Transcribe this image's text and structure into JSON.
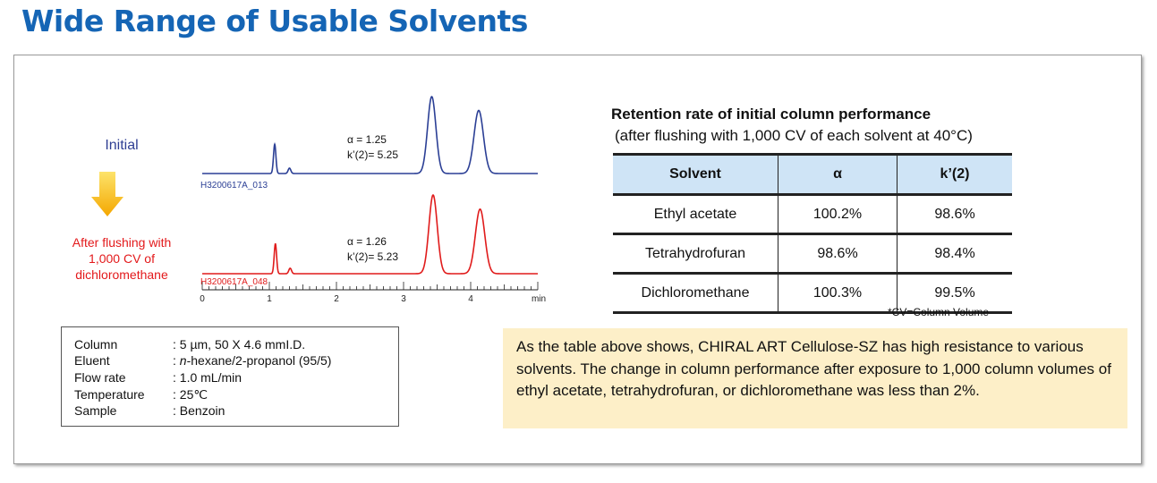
{
  "page": {
    "title": "Wide Range of Usable Solvents"
  },
  "labels": {
    "initial": "Initial",
    "after_line1": "After flushing with",
    "after_line2": "1,000 CV of",
    "after_line3": "dichloromethane"
  },
  "chart_data": {
    "type": "line",
    "title": "",
    "xlabel": "min",
    "x_ticks": [
      "0",
      "1",
      "2",
      "3",
      "4"
    ],
    "xlim": [
      0,
      5
    ],
    "x_minor_step": 0.1,
    "grid": false,
    "legend": "none",
    "series": [
      {
        "color": "#2b3f95",
        "file_label": "H3200617A_013",
        "annotation_alpha": "α = 1.25",
        "annotation_k": "k’(2)= 5.25",
        "peaks": [
          {
            "t": 1.08,
            "height": 0.38,
            "width": 0.018
          },
          {
            "t": 1.3,
            "height": 0.07,
            "width": 0.02
          },
          {
            "t": 3.42,
            "height": 1.0,
            "width": 0.062
          },
          {
            "t": 4.12,
            "height": 0.82,
            "width": 0.07
          }
        ]
      },
      {
        "color": "#e01b1b",
        "file_label": "H3200617A_048",
        "annotation_alpha": "α = 1.26",
        "annotation_k": "k’(2)= 5.23",
        "peaks": [
          {
            "t": 1.09,
            "height": 0.38,
            "width": 0.018
          },
          {
            "t": 1.31,
            "height": 0.07,
            "width": 0.02
          },
          {
            "t": 3.44,
            "height": 1.0,
            "width": 0.062
          },
          {
            "t": 4.14,
            "height": 0.82,
            "width": 0.07
          }
        ]
      }
    ]
  },
  "conditions": [
    {
      "key": "Column",
      "value": ": 5 µm, 50 X 4.6 mmI.D."
    },
    {
      "key": "Eluent",
      "value_prefix": ": ",
      "value_italic": "n",
      "value_rest": "-hexane/2-propanol (95/5)"
    },
    {
      "key": "Flow rate",
      "value": ": 1.0 mL/min"
    },
    {
      "key": "Temperature",
      "value": ": 25℃"
    },
    {
      "key": "Sample",
      "value": ": Benzoin"
    }
  ],
  "table": {
    "title": "Retention rate of initial column performance",
    "subtitle": "(after flushing with 1,000 CV of each solvent at 40°C)",
    "headers": [
      "Solvent",
      "α",
      "k’(2)"
    ],
    "rows": [
      [
        "Ethyl acetate",
        "100.2%",
        "98.6%"
      ],
      [
        "Tetrahydrofuran",
        "98.6%",
        "98.4%"
      ],
      [
        "Dichloromethane",
        "100.3%",
        "99.5%"
      ]
    ],
    "footnote": "*CV=Column Volume"
  },
  "note": "As the table above shows, CHIRAL ART Cellulose-SZ has high resistance to various solvents. The change in column performance after exposure to 1,000 column volumes of ethyl acetate, tetrahydrofuran, or dichloromethane was less than 2%."
}
